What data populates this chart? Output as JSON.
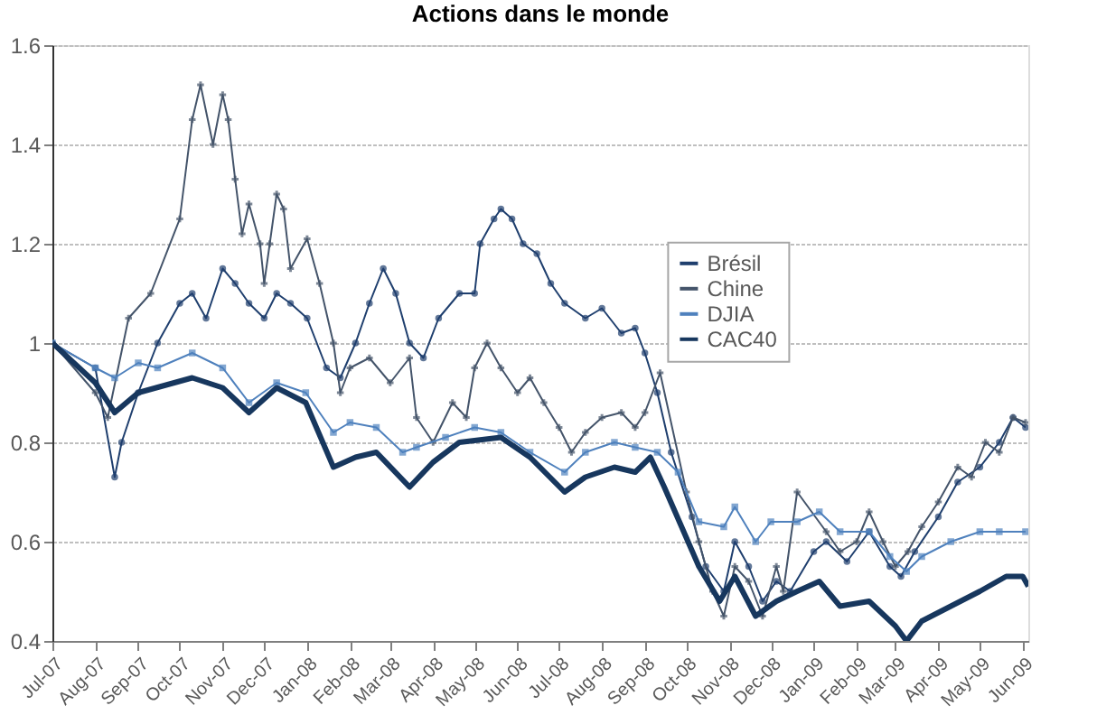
{
  "chart_data": {
    "type": "line",
    "title": "Actions dans le monde",
    "xlim": [
      "2007-07-01",
      "2009-06-05"
    ],
    "xticks": [
      {
        "value": "2007-07-01",
        "label": "Jul-07"
      },
      {
        "value": "2007-08-01",
        "label": "Aug-07"
      },
      {
        "value": "2007-09-01",
        "label": "Sep-07"
      },
      {
        "value": "2007-10-01",
        "label": "Oct-07"
      },
      {
        "value": "2007-11-01",
        "label": "Nov-07"
      },
      {
        "value": "2007-12-01",
        "label": "Dec-07"
      },
      {
        "value": "2008-01-01",
        "label": "Jan-08"
      },
      {
        "value": "2008-02-01",
        "label": "Feb-08"
      },
      {
        "value": "2008-03-01",
        "label": "Mar-08"
      },
      {
        "value": "2008-04-01",
        "label": "Apr-08"
      },
      {
        "value": "2008-05-01",
        "label": "May-08"
      },
      {
        "value": "2008-06-01",
        "label": "Jun-08"
      },
      {
        "value": "2008-07-01",
        "label": "Jul-08"
      },
      {
        "value": "2008-08-01",
        "label": "Aug-08"
      },
      {
        "value": "2008-09-01",
        "label": "Sep-08"
      },
      {
        "value": "2008-10-01",
        "label": "Oct-08"
      },
      {
        "value": "2008-11-01",
        "label": "Nov-08"
      },
      {
        "value": "2008-12-01",
        "label": "Dec-08"
      },
      {
        "value": "2009-01-01",
        "label": "Jan-09"
      },
      {
        "value": "2009-02-01",
        "label": "Feb-09"
      },
      {
        "value": "2009-03-01",
        "label": "Mar-09"
      },
      {
        "value": "2009-04-01",
        "label": "Apr-09"
      },
      {
        "value": "2009-05-01",
        "label": "May-09"
      },
      {
        "value": "2009-06-01",
        "label": "Jun-09"
      }
    ],
    "ylim": [
      0.4,
      1.6
    ],
    "yticks": [
      0.4,
      0.6,
      0.8,
      1,
      1.2,
      1.4,
      1.6
    ],
    "grid": "y",
    "legend": "right",
    "series": [
      {
        "name": "Brésil",
        "color": "#1f3f6e",
        "marker": "circle",
        "x": [
          "2007-07-01",
          "2007-08-01",
          "2007-08-15",
          "2007-08-20",
          "2007-09-01",
          "2007-09-15",
          "2007-10-01",
          "2007-10-10",
          "2007-10-20",
          "2007-11-01",
          "2007-11-10",
          "2007-11-20",
          "2007-12-01",
          "2007-12-10",
          "2007-12-20",
          "2008-01-01",
          "2008-01-15",
          "2008-01-25",
          "2008-02-05",
          "2008-02-15",
          "2008-02-25",
          "2008-03-05",
          "2008-03-15",
          "2008-03-25",
          "2008-04-05",
          "2008-04-20",
          "2008-05-01",
          "2008-05-05",
          "2008-05-15",
          "2008-05-20",
          "2008-05-28",
          "2008-06-05",
          "2008-06-15",
          "2008-06-25",
          "2008-07-05",
          "2008-07-20",
          "2008-08-01",
          "2008-08-15",
          "2008-08-25",
          "2008-09-01",
          "2008-09-10",
          "2008-09-20",
          "2008-10-05",
          "2008-10-15",
          "2008-10-28",
          "2008-11-05",
          "2008-11-15",
          "2008-11-25",
          "2008-12-05",
          "2008-12-15",
          "2009-01-01",
          "2009-01-10",
          "2009-01-25",
          "2009-02-10",
          "2009-02-25",
          "2009-03-05",
          "2009-03-15",
          "2009-04-01",
          "2009-04-15",
          "2009-05-01",
          "2009-05-15",
          "2009-05-25",
          "2009-06-03"
        ],
        "values": [
          1.0,
          0.95,
          0.73,
          0.8,
          0.9,
          1.0,
          1.08,
          1.1,
          1.05,
          1.15,
          1.12,
          1.08,
          1.05,
          1.1,
          1.08,
          1.05,
          0.95,
          0.93,
          1.0,
          1.08,
          1.15,
          1.1,
          1.0,
          0.97,
          1.05,
          1.1,
          1.1,
          1.2,
          1.25,
          1.27,
          1.25,
          1.2,
          1.18,
          1.12,
          1.08,
          1.05,
          1.07,
          1.02,
          1.03,
          0.98,
          0.9,
          0.78,
          0.65,
          0.55,
          0.5,
          0.6,
          0.55,
          0.48,
          0.52,
          0.5,
          0.58,
          0.6,
          0.56,
          0.62,
          0.55,
          0.53,
          0.58,
          0.65,
          0.72,
          0.75,
          0.8,
          0.85,
          0.83
        ]
      },
      {
        "name": "Chine",
        "color": "#44546a",
        "marker": "cross",
        "x": [
          "2007-07-01",
          "2007-08-01",
          "2007-08-10",
          "2007-08-25",
          "2007-09-10",
          "2007-10-01",
          "2007-10-10",
          "2007-10-16",
          "2007-10-25",
          "2007-11-01",
          "2007-11-05",
          "2007-11-10",
          "2007-11-15",
          "2007-11-20",
          "2007-11-28",
          "2007-12-01",
          "2007-12-05",
          "2007-12-10",
          "2007-12-15",
          "2007-12-20",
          "2008-01-01",
          "2008-01-10",
          "2008-01-20",
          "2008-01-25",
          "2008-02-01",
          "2008-02-15",
          "2008-03-01",
          "2008-03-15",
          "2008-03-20",
          "2008-04-01",
          "2008-04-15",
          "2008-04-25",
          "2008-05-01",
          "2008-05-10",
          "2008-05-20",
          "2008-06-01",
          "2008-06-10",
          "2008-06-20",
          "2008-07-01",
          "2008-07-10",
          "2008-07-20",
          "2008-08-01",
          "2008-08-15",
          "2008-08-25",
          "2008-09-01",
          "2008-09-12",
          "2008-10-01",
          "2008-10-10",
          "2008-10-20",
          "2008-10-28",
          "2008-11-05",
          "2008-11-15",
          "2008-11-25",
          "2008-12-05",
          "2008-12-10",
          "2008-12-20",
          "2009-01-10",
          "2009-01-20",
          "2009-02-01",
          "2009-02-10",
          "2009-02-20",
          "2009-03-01",
          "2009-03-10",
          "2009-03-20",
          "2009-04-01",
          "2009-04-15",
          "2009-04-25",
          "2009-05-05",
          "2009-05-15",
          "2009-05-25",
          "2009-06-03"
        ],
        "values": [
          1.0,
          0.9,
          0.85,
          1.05,
          1.1,
          1.25,
          1.45,
          1.52,
          1.4,
          1.5,
          1.45,
          1.33,
          1.22,
          1.28,
          1.2,
          1.12,
          1.2,
          1.3,
          1.27,
          1.15,
          1.21,
          1.12,
          1.0,
          0.9,
          0.95,
          0.97,
          0.92,
          0.97,
          0.85,
          0.8,
          0.88,
          0.85,
          0.95,
          1.0,
          0.95,
          0.9,
          0.93,
          0.88,
          0.83,
          0.78,
          0.82,
          0.85,
          0.86,
          0.83,
          0.86,
          0.94,
          0.7,
          0.6,
          0.5,
          0.45,
          0.55,
          0.52,
          0.45,
          0.55,
          0.5,
          0.7,
          0.62,
          0.58,
          0.6,
          0.66,
          0.6,
          0.55,
          0.58,
          0.63,
          0.68,
          0.75,
          0.73,
          0.8,
          0.78,
          0.85,
          0.84
        ]
      },
      {
        "name": "DJIA",
        "color": "#4f81bd",
        "marker": "square",
        "x": [
          "2007-07-01",
          "2007-08-01",
          "2007-08-15",
          "2007-09-01",
          "2007-09-15",
          "2007-10-10",
          "2007-11-01",
          "2007-11-20",
          "2007-12-10",
          "2007-12-31",
          "2008-01-20",
          "2008-02-01",
          "2008-02-20",
          "2008-03-10",
          "2008-03-20",
          "2008-04-10",
          "2008-05-01",
          "2008-05-20",
          "2008-06-10",
          "2008-07-05",
          "2008-07-20",
          "2008-08-10",
          "2008-08-25",
          "2008-09-10",
          "2008-09-25",
          "2008-10-10",
          "2008-10-28",
          "2008-11-05",
          "2008-11-20",
          "2008-12-01",
          "2008-12-20",
          "2009-01-05",
          "2009-01-20",
          "2009-02-10",
          "2009-02-25",
          "2009-03-09",
          "2009-03-20",
          "2009-04-10",
          "2009-05-01",
          "2009-05-15",
          "2009-06-03"
        ],
        "values": [
          1.0,
          0.95,
          0.93,
          0.96,
          0.95,
          0.98,
          0.95,
          0.88,
          0.92,
          0.9,
          0.82,
          0.84,
          0.83,
          0.78,
          0.79,
          0.81,
          0.83,
          0.82,
          0.78,
          0.74,
          0.78,
          0.8,
          0.79,
          0.78,
          0.74,
          0.64,
          0.63,
          0.67,
          0.6,
          0.64,
          0.64,
          0.66,
          0.62,
          0.62,
          0.57,
          0.54,
          0.57,
          0.6,
          0.62,
          0.62,
          0.62
        ]
      },
      {
        "name": "CAC40",
        "color": "#17375e",
        "marker": "none",
        "x": [
          "2007-07-01",
          "2007-08-01",
          "2007-08-15",
          "2007-09-01",
          "2007-10-10",
          "2007-11-01",
          "2007-11-20",
          "2007-12-10",
          "2007-12-31",
          "2008-01-20",
          "2008-02-05",
          "2008-02-20",
          "2008-03-15",
          "2008-04-01",
          "2008-04-20",
          "2008-05-20",
          "2008-06-10",
          "2008-07-05",
          "2008-07-20",
          "2008-08-10",
          "2008-08-25",
          "2008-09-05",
          "2008-09-15",
          "2008-10-10",
          "2008-10-25",
          "2008-11-05",
          "2008-11-20",
          "2008-12-05",
          "2008-12-20",
          "2009-01-05",
          "2009-01-20",
          "2009-02-10",
          "2009-03-01",
          "2009-03-09",
          "2009-03-20",
          "2009-04-10",
          "2009-05-01",
          "2009-05-20",
          "2009-06-01",
          "2009-06-05"
        ],
        "values": [
          1.0,
          0.92,
          0.86,
          0.9,
          0.93,
          0.91,
          0.86,
          0.91,
          0.88,
          0.75,
          0.77,
          0.78,
          0.71,
          0.76,
          0.8,
          0.81,
          0.77,
          0.7,
          0.73,
          0.75,
          0.74,
          0.77,
          0.71,
          0.55,
          0.48,
          0.53,
          0.45,
          0.48,
          0.5,
          0.52,
          0.47,
          0.48,
          0.43,
          0.4,
          0.44,
          0.47,
          0.5,
          0.53,
          0.53,
          0.51
        ]
      }
    ]
  }
}
